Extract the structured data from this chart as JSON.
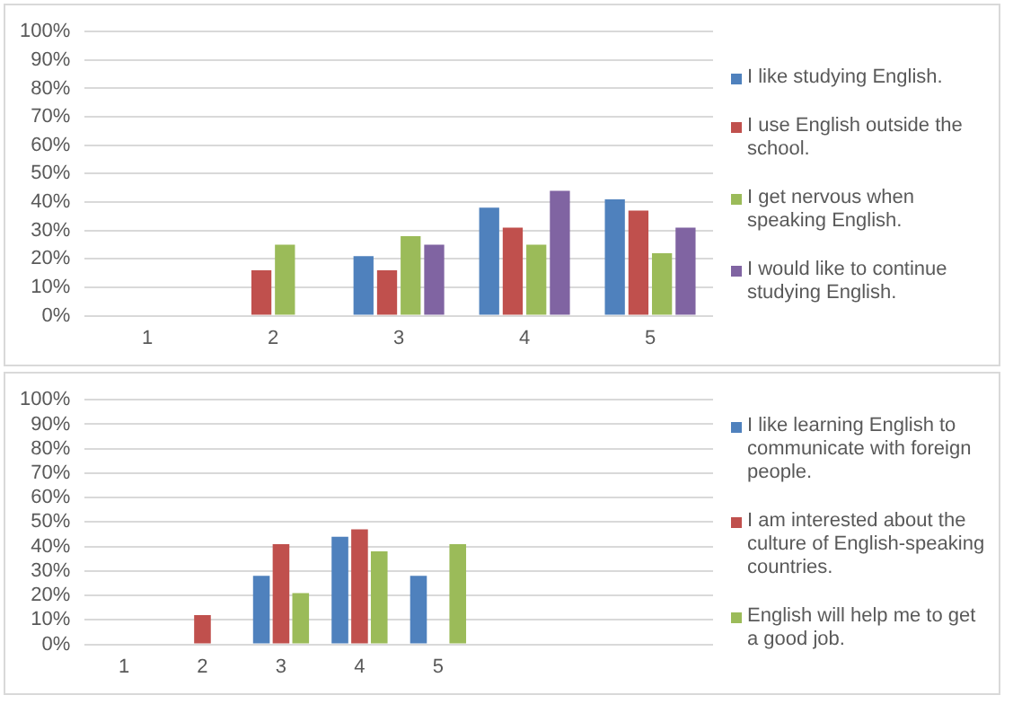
{
  "chart_data": [
    {
      "type": "bar",
      "categories": [
        "1",
        "2",
        "3",
        "4",
        "5"
      ],
      "series": [
        {
          "name": "I like studying English.",
          "color": "#4f81bd",
          "values": [
            0,
            0,
            21,
            38,
            41
          ]
        },
        {
          "name": "I use English outside the school.",
          "color": "#c0504d",
          "values": [
            0,
            16,
            16,
            31,
            37
          ]
        },
        {
          "name": "I get nervous when speaking English.",
          "color": "#9bbb59",
          "values": [
            0,
            25,
            28,
            25,
            22
          ]
        },
        {
          "name": "I would like to continue studying English.",
          "color": "#8064a2",
          "values": [
            0,
            0,
            25,
            44,
            31
          ]
        }
      ],
      "ylim": [
        0,
        100
      ],
      "yticks": [
        {
          "value": 0,
          "label": "0%"
        },
        {
          "value": 10,
          "label": "10%"
        },
        {
          "value": 20,
          "label": "20%"
        },
        {
          "value": 30,
          "label": "30%"
        },
        {
          "value": 40,
          "label": "40%"
        },
        {
          "value": 50,
          "label": "50%"
        },
        {
          "value": 60,
          "label": "60%"
        },
        {
          "value": 70,
          "label": "70%"
        },
        {
          "value": 80,
          "label": "80%"
        },
        {
          "value": 90,
          "label": "90%"
        },
        {
          "value": 100,
          "label": "100%"
        }
      ],
      "grid": "y",
      "legend": "right"
    },
    {
      "type": "bar",
      "categories": [
        "1",
        "2",
        "3",
        "4",
        "5",
        null,
        null,
        null
      ],
      "series": [
        {
          "name": "I like learning English to communicate with foreign people.",
          "color": "#4f81bd",
          "values": [
            0,
            0,
            28,
            44,
            28,
            null,
            null,
            null
          ]
        },
        {
          "name": "I am interested about the culture of English-speaking countries.",
          "color": "#c0504d",
          "values": [
            0,
            12,
            41,
            47,
            0,
            null,
            null,
            null
          ]
        },
        {
          "name": "English will help me to get a good job.",
          "color": "#9bbb59",
          "values": [
            0,
            0,
            21,
            38,
            41,
            null,
            null,
            null
          ]
        }
      ],
      "ylim": [
        0,
        100
      ],
      "yticks": [
        {
          "value": 0,
          "label": "0%"
        },
        {
          "value": 10,
          "label": "10%"
        },
        {
          "value": 20,
          "label": "20%"
        },
        {
          "value": 30,
          "label": "30%"
        },
        {
          "value": 40,
          "label": "40%"
        },
        {
          "value": 50,
          "label": "50%"
        },
        {
          "value": 60,
          "label": "60%"
        },
        {
          "value": 70,
          "label": "70%"
        },
        {
          "value": 80,
          "label": "80%"
        },
        {
          "value": 90,
          "label": "90%"
        },
        {
          "value": 100,
          "label": "100%"
        }
      ],
      "grid": "y",
      "legend": "right"
    }
  ]
}
